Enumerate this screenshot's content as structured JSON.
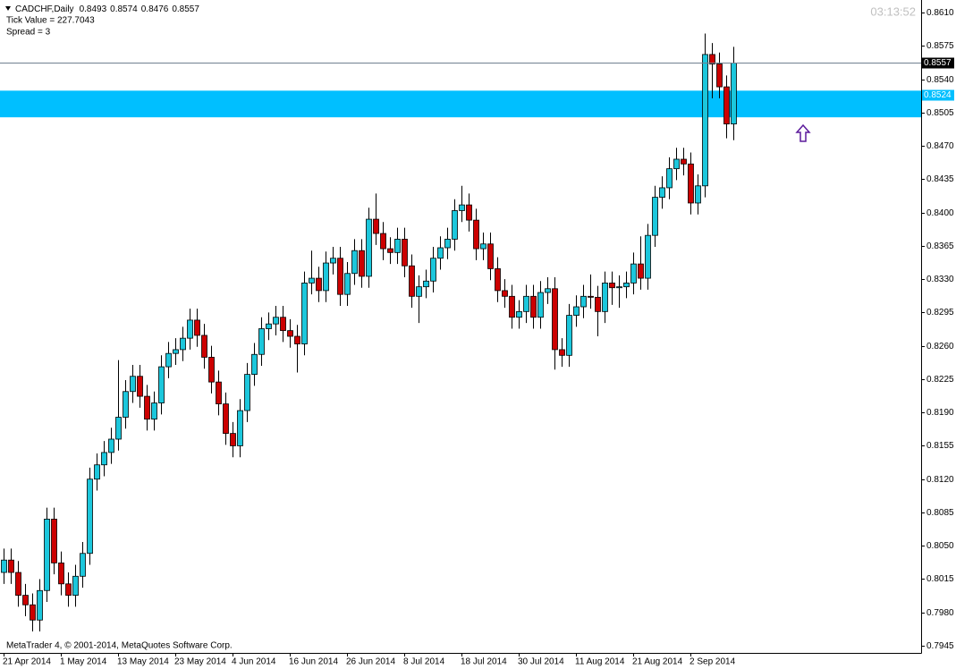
{
  "chart_data": {
    "type": "candlestick",
    "title": "CADCHF,Daily",
    "tick_value_text": "Tick Value = 227.7043",
    "spread_text": "Spread = 3",
    "time": "03:13:52",
    "copyright": "MetaTrader 4, © 2001-2014, MetaQuotes Software Corp.",
    "up_color": "#1cc7dc",
    "down_color": "#cc0000",
    "zone": [
      0.85,
      0.8528
    ],
    "zone_color": "#00bfff",
    "zone_label": 0.8524,
    "ylim": [
      0.79375,
      0.86232
    ],
    "yticks": [
      {
        "value": 0.861,
        "label": "0.8610"
      },
      0.8575,
      {
        "value": 0.854,
        "label": "0.8540"
      },
      0.8505,
      {
        "value": 0.847,
        "label": "0.8470"
      },
      0.8435,
      {
        "value": 0.84,
        "label": "0.8400"
      },
      0.8365,
      {
        "value": 0.833,
        "label": "0.8330"
      },
      0.8295,
      {
        "value": 0.826,
        "label": "0.8260"
      },
      0.8225,
      {
        "value": 0.819,
        "label": "0.8190"
      },
      0.8155,
      {
        "value": 0.812,
        "label": "0.8120"
      },
      0.8085,
      {
        "value": 0.805,
        "label": "0.8050"
      },
      0.8015,
      {
        "value": 0.798,
        "label": "0.7980"
      },
      0.7945
    ],
    "categories": [
      "21 Apr 2014",
      null,
      null,
      null,
      null,
      null,
      null,
      null,
      "1 May 2014",
      null,
      null,
      null,
      null,
      null,
      null,
      null,
      "13 May 2014",
      null,
      null,
      null,
      null,
      null,
      null,
      null,
      "23 May 2014",
      null,
      null,
      null,
      null,
      null,
      null,
      null,
      "4 Jun 2014",
      null,
      null,
      null,
      null,
      null,
      null,
      null,
      "16 Jun 2014",
      null,
      null,
      null,
      null,
      null,
      null,
      null,
      "26 Jun 2014",
      null,
      null,
      null,
      null,
      null,
      null,
      null,
      "8 Jul 2014",
      null,
      null,
      null,
      null,
      null,
      null,
      null,
      "18 Jul 2014",
      null,
      null,
      null,
      null,
      null,
      null,
      null,
      "30 Jul 2014",
      null,
      null,
      null,
      null,
      null,
      null,
      null,
      "11 Aug 2014",
      null,
      null,
      null,
      null,
      null,
      null,
      null,
      "21 Aug 2014",
      null,
      null,
      null,
      null,
      null,
      null,
      null,
      "2 Sep 2014",
      null,
      null,
      null,
      null,
      null,
      null
    ],
    "open": [
      0.8022,
      0.8035,
      0.8022,
      0.7998,
      0.7988,
      0.7972,
      0.8003,
      0.8078,
      0.8032,
      0.801,
      0.7998,
      0.8018,
      0.8042,
      0.812,
      0.8135,
      0.8148,
      0.8162,
      0.8185,
      0.8212,
      0.8228,
      0.8207,
      0.8183,
      0.82,
      0.8238,
      0.8252,
      0.8256,
      0.8268,
      0.8287,
      0.8271,
      0.8248,
      0.8222,
      0.8199,
      0.8168,
      0.8155,
      0.8192,
      0.823,
      0.8251,
      0.8278,
      0.8283,
      0.829,
      0.8276,
      0.827,
      0.8262,
      0.8326,
      0.8331,
      0.8318,
      0.8347,
      0.8352,
      0.8314,
      0.8336,
      0.836,
      0.8333,
      0.8393,
      0.8378,
      0.8362,
      0.8358,
      0.8372,
      0.8344,
      0.8312,
      0.8322,
      0.8328,
      0.8352,
      0.8363,
      0.8372,
      0.8402,
      0.8408,
      0.8392,
      0.8362,
      0.8367,
      0.8341,
      0.8318,
      0.8312,
      0.829,
      0.8296,
      0.8312,
      0.829,
      0.8316,
      0.832,
      0.8256,
      0.825,
      0.8292,
      0.8301,
      0.8312,
      0.8311,
      0.8296,
      0.8326,
      0.8321,
      0.8322,
      0.8326,
      0.8346,
      0.8331,
      0.8376,
      0.8416,
      0.8426,
      0.8446,
      0.8456,
      0.8451,
      0.841,
      0.8428,
      0.8566,
      0.8556,
      0.8532,
      0.8493
    ],
    "high": [
      0.8047,
      0.8047,
      0.8034,
      0.801,
      0.8,
      0.8015,
      0.809,
      0.809,
      0.8044,
      0.8022,
      0.803,
      0.8054,
      0.8132,
      0.8147,
      0.816,
      0.8174,
      0.8245,
      0.8224,
      0.824,
      0.824,
      0.8219,
      0.8212,
      0.825,
      0.8264,
      0.8268,
      0.828,
      0.8299,
      0.8299,
      0.8283,
      0.826,
      0.8234,
      0.8211,
      0.818,
      0.8204,
      0.8242,
      0.8263,
      0.829,
      0.8295,
      0.8302,
      0.8302,
      0.8288,
      0.8282,
      0.8338,
      0.836,
      0.8343,
      0.8359,
      0.8364,
      0.8364,
      0.8348,
      0.8372,
      0.8372,
      0.8405,
      0.842,
      0.839,
      0.8374,
      0.8384,
      0.8384,
      0.8356,
      0.8334,
      0.834,
      0.8364,
      0.8375,
      0.8384,
      0.8414,
      0.8428,
      0.842,
      0.8404,
      0.8379,
      0.8379,
      0.8353,
      0.833,
      0.8324,
      0.8308,
      0.8324,
      0.8324,
      0.8328,
      0.8332,
      0.8332,
      0.8268,
      0.8304,
      0.8313,
      0.8324,
      0.8335,
      0.8323,
      0.8338,
      0.8338,
      0.8334,
      0.8338,
      0.8358,
      0.8375,
      0.8388,
      0.8428,
      0.8438,
      0.8458,
      0.8468,
      0.8468,
      0.8463,
      0.844,
      0.8588,
      0.8578,
      0.8568,
      0.8544,
      0.8574
    ],
    "low": [
      0.801,
      0.801,
      0.7986,
      0.7976,
      0.796,
      0.796,
      0.7991,
      0.802,
      0.7998,
      0.7986,
      0.7986,
      0.8006,
      0.803,
      0.8108,
      0.8123,
      0.8136,
      0.815,
      0.8173,
      0.82,
      0.8195,
      0.8171,
      0.8171,
      0.8188,
      0.8226,
      0.824,
      0.8244,
      0.8256,
      0.8259,
      0.8236,
      0.821,
      0.8187,
      0.8156,
      0.8143,
      0.8143,
      0.818,
      0.8218,
      0.8239,
      0.8266,
      0.8271,
      0.8264,
      0.8258,
      0.8232,
      0.825,
      0.8314,
      0.8306,
      0.8306,
      0.8335,
      0.8302,
      0.8302,
      0.8324,
      0.8321,
      0.8321,
      0.8366,
      0.835,
      0.8346,
      0.8346,
      0.8332,
      0.83,
      0.8284,
      0.831,
      0.8316,
      0.834,
      0.8351,
      0.836,
      0.839,
      0.838,
      0.835,
      0.835,
      0.8329,
      0.8306,
      0.83,
      0.8278,
      0.8278,
      0.8284,
      0.8278,
      0.8278,
      0.8304,
      0.8235,
      0.8238,
      0.8238,
      0.828,
      0.8289,
      0.8299,
      0.827,
      0.8284,
      0.8303,
      0.83,
      0.831,
      0.8314,
      0.8319,
      0.8319,
      0.8364,
      0.8404,
      0.8414,
      0.8434,
      0.8439,
      0.8398,
      0.8398,
      0.8416,
      0.852,
      0.852,
      0.8478,
      0.8476
    ],
    "close": [
      0.8035,
      0.8022,
      0.7998,
      0.7988,
      0.7972,
      0.8003,
      0.8078,
      0.8032,
      0.801,
      0.7998,
      0.8018,
      0.8042,
      0.812,
      0.8135,
      0.8148,
      0.8162,
      0.8185,
      0.8212,
      0.8228,
      0.8207,
      0.8183,
      0.82,
      0.8238,
      0.8252,
      0.8256,
      0.8268,
      0.8287,
      0.8271,
      0.8248,
      0.8222,
      0.8199,
      0.8168,
      0.8155,
      0.8192,
      0.823,
      0.8251,
      0.8278,
      0.8283,
      0.829,
      0.8276,
      0.827,
      0.8262,
      0.8326,
      0.8331,
      0.8318,
      0.8347,
      0.8352,
      0.8314,
      0.8336,
      0.836,
      0.8333,
      0.8393,
      0.8378,
      0.8362,
      0.8358,
      0.8372,
      0.8344,
      0.8312,
      0.8322,
      0.8328,
      0.8352,
      0.8363,
      0.8372,
      0.8402,
      0.8408,
      0.8392,
      0.8362,
      0.8367,
      0.8341,
      0.8318,
      0.8312,
      0.829,
      0.8296,
      0.8312,
      0.829,
      0.8316,
      0.832,
      0.8256,
      0.825,
      0.8292,
      0.8301,
      0.8312,
      0.8311,
      0.8296,
      0.8326,
      0.8321,
      0.8322,
      0.8326,
      0.8346,
      0.8331,
      0.8376,
      0.8416,
      0.8426,
      0.8446,
      0.8456,
      0.8451,
      0.841,
      0.8428,
      0.8566,
      0.8556,
      0.8532,
      0.8493,
      0.8557
    ]
  }
}
